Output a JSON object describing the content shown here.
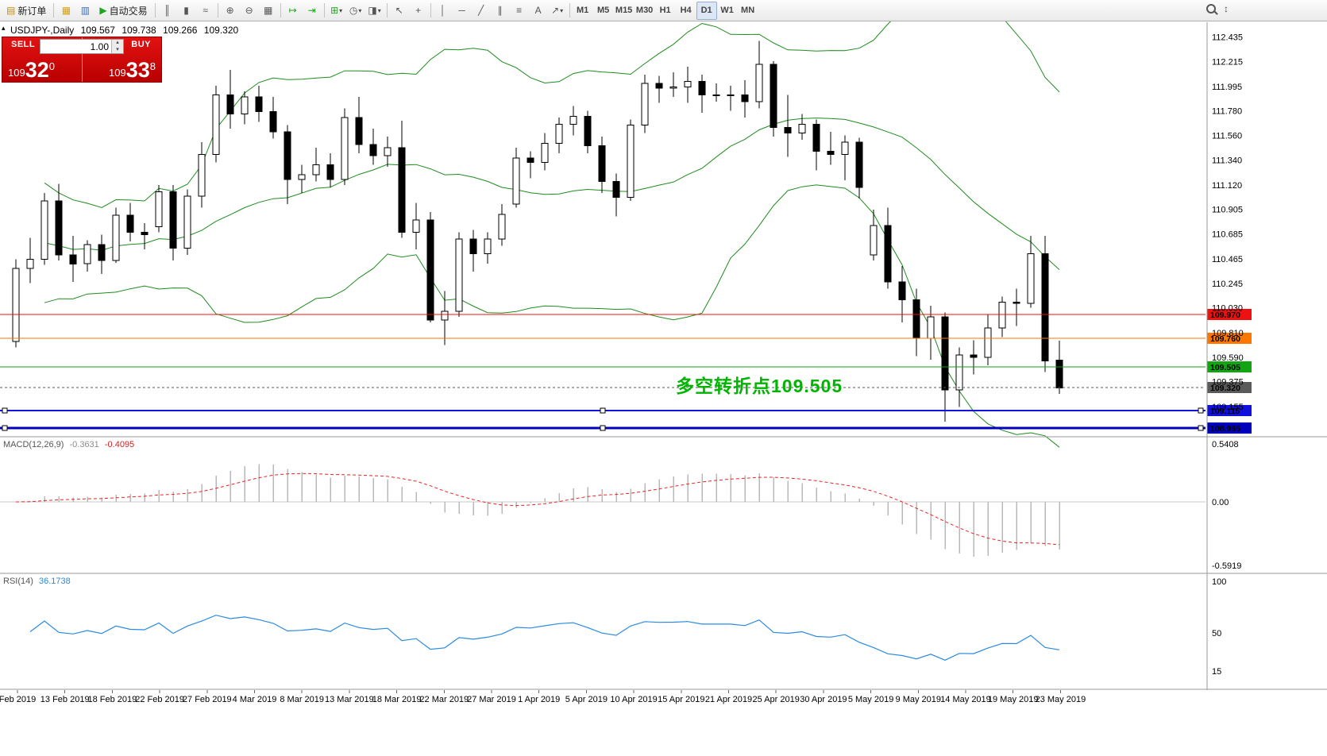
{
  "toolbar": {
    "groups": [
      [
        {
          "name": "new-order",
          "glyph": "▤",
          "glyph_color": "#c78f00",
          "label": "新订单"
        }
      ],
      [
        {
          "name": "charts-window",
          "glyph": "▦",
          "glyph_color": "#d4a017"
        },
        {
          "name": "market-watch",
          "glyph": "▥",
          "glyph_color": "#3b6fb5"
        },
        {
          "name": "auto-trading",
          "glyph": "▶",
          "glyph_color": "#1fa51f",
          "label": "自动交易"
        }
      ],
      [
        {
          "name": "bar-chart-type",
          "glyph": "║"
        },
        {
          "name": "candlestick-chart-type",
          "glyph": "▮"
        },
        {
          "name": "line-chart-type",
          "glyph": "≈"
        }
      ],
      [
        {
          "name": "zoom-in",
          "glyph": "⊕"
        },
        {
          "name": "zoom-out",
          "glyph": "⊖"
        },
        {
          "name": "tile-windows",
          "glyph": "▦"
        }
      ],
      [
        {
          "name": "auto-scroll",
          "glyph": "↦",
          "glyph_color": "#1fa51f"
        },
        {
          "name": "chart-shift",
          "glyph": "⇥",
          "glyph_color": "#1fa51f"
        }
      ],
      [
        {
          "name": "indicators-list",
          "glyph": "⊞",
          "glyph_color": "#1fa51f",
          "caret": true
        },
        {
          "name": "periods-menu",
          "glyph": "◷",
          "caret": true
        },
        {
          "name": "templates-menu",
          "glyph": "◨",
          "caret": true
        }
      ],
      [
        {
          "name": "cursor-tool",
          "glyph": "↖"
        },
        {
          "name": "crosshair-tool",
          "glyph": "+"
        }
      ],
      [
        {
          "name": "vertical-line-tool",
          "glyph": "│"
        },
        {
          "name": "horizontal-line-tool",
          "glyph": "─"
        },
        {
          "name": "trendline-tool",
          "glyph": "╱"
        },
        {
          "name": "equidistant-channel-tool",
          "glyph": "∥"
        },
        {
          "name": "fibonacci-tool",
          "glyph": "≡"
        },
        {
          "name": "text-tool",
          "glyph": "A"
        },
        {
          "name": "arrow-objects-tool",
          "glyph": "↗",
          "caret": true
        }
      ],
      [
        {
          "name": "tf-m1",
          "tf": true,
          "label": "M1"
        },
        {
          "name": "tf-m5",
          "tf": true,
          "label": "M5"
        },
        {
          "name": "tf-m15",
          "tf": true,
          "label": "M15"
        },
        {
          "name": "tf-m30",
          "tf": true,
          "label": "M30"
        },
        {
          "name": "tf-h1",
          "tf": true,
          "label": "H1"
        },
        {
          "name": "tf-h4",
          "tf": true,
          "label": "H4"
        },
        {
          "name": "tf-d1",
          "tf": true,
          "label": "D1",
          "active": true
        },
        {
          "name": "tf-w1",
          "tf": true,
          "label": "W1"
        },
        {
          "name": "tf-mn",
          "tf": true,
          "label": "MN"
        }
      ]
    ]
  },
  "chart_info": {
    "symbol_period": "USDJPY-,Daily",
    "open": "109.567",
    "high": "109.738",
    "low": "109.266",
    "close": "109.320"
  },
  "trade_panel": {
    "sell_label": "SELL",
    "buy_label": "BUY",
    "volume": "1.00",
    "sell_price_small": "109",
    "sell_price_big": "32",
    "sell_price_sup": "0",
    "buy_price_small": "109",
    "buy_price_big": "33",
    "buy_price_sup": "8"
  },
  "annotation": {
    "text": "多空转折点109.505",
    "color": "#00b400"
  },
  "indicator_labels": {
    "macd_name": "MACD(12,26,9)",
    "macd_main": "-0.3631",
    "macd_signal": "-0.4095",
    "rsi_name": "RSI(14)",
    "rsi_value": "36.1738"
  },
  "chart_data": {
    "type": "candlestick",
    "symbol": "USDJPY-",
    "timeframe": "Daily",
    "y_axis_ticks": [
      112.435,
      112.215,
      111.995,
      111.78,
      111.56,
      111.34,
      111.12,
      110.905,
      110.685,
      110.465,
      110.245,
      110.03,
      109.81,
      109.59,
      109.375,
      109.155
    ],
    "macd_axis": [
      "0.5408",
      "0.00",
      "-0.5919"
    ],
    "rsi_axis": [
      "100",
      "50",
      "15"
    ],
    "x_axis_labels": [
      "Feb 2019",
      "13 Feb 2019",
      "18 Feb 2019",
      "22 Feb 2019",
      "27 Feb 2019",
      "4 Mar 2019",
      "8 Mar 2019",
      "13 Mar 2019",
      "18 Mar 2019",
      "22 Mar 2019",
      "27 Mar 2019",
      "1 Apr 2019",
      "5 Apr 2019",
      "10 Apr 2019",
      "15 Apr 2019",
      "21 Apr 2019",
      "25 Apr 2019",
      "30 Apr 2019",
      "5 May 2019",
      "9 May 2019",
      "14 May 2019",
      "19 May 2019",
      "23 May 2019"
    ],
    "levels": [
      {
        "price": "109.970",
        "value": 109.97,
        "color": "#ee1111",
        "width": 1
      },
      {
        "price": "109.760",
        "value": 109.76,
        "color": "#ff7700",
        "width": 1
      },
      {
        "price": "109.505",
        "value": 109.505,
        "color": "#11a611",
        "width": 1
      },
      {
        "price": "109.320",
        "value": 109.32,
        "color": "#5a5a5a",
        "width": 1,
        "dash": true,
        "current": true
      },
      {
        "price": "109.115",
        "value": 109.115,
        "color": "#1111dd",
        "width": 2,
        "handles": true
      },
      {
        "price": "108.965",
        "value": 108.965,
        "color": "#0000bb",
        "width": 3,
        "handles": true
      }
    ],
    "bollinger": {
      "period": 20,
      "deviation": 2,
      "color": "#1e8c1e"
    },
    "macd": {
      "fast": 12,
      "slow": 26,
      "signal": 9,
      "histogram_color": "#b8b8b8",
      "signal_color": "#ee2222"
    },
    "rsi": {
      "period": 14,
      "color": "#2a8ae2"
    },
    "candles": [
      [
        "11 Feb 2019",
        109.73,
        110.46,
        109.68,
        110.38
      ],
      [
        "12 Feb 2019",
        110.38,
        110.65,
        110.25,
        110.46
      ],
      [
        "13 Feb 2019",
        110.46,
        111.05,
        110.41,
        110.98
      ],
      [
        "14 Feb 2019",
        110.98,
        111.13,
        110.45,
        110.5
      ],
      [
        "15 Feb 2019",
        110.5,
        110.67,
        110.26,
        110.42
      ],
      [
        "18 Feb 2019",
        110.42,
        110.63,
        110.35,
        110.59
      ],
      [
        "19 Feb 2019",
        110.59,
        110.68,
        110.33,
        110.45
      ],
      [
        "20 Feb 2019",
        110.45,
        110.92,
        110.43,
        110.85
      ],
      [
        "21 Feb 2019",
        110.85,
        110.96,
        110.62,
        110.7
      ],
      [
        "22 Feb 2019",
        110.7,
        110.78,
        110.55,
        110.68
      ],
      [
        "25 Feb 2019",
        110.75,
        111.12,
        110.7,
        111.06
      ],
      [
        "26 Feb 2019",
        111.06,
        111.12,
        110.45,
        110.56
      ],
      [
        "27 Feb 2019",
        110.56,
        111.08,
        110.5,
        111.02
      ],
      [
        "28 Feb 2019",
        111.02,
        111.5,
        110.92,
        111.39
      ],
      [
        "1 Mar 2019",
        111.39,
        112.0,
        111.32,
        111.92
      ],
      [
        "4 Mar 2019",
        111.92,
        112.14,
        111.62,
        111.75
      ],
      [
        "5 Mar 2019",
        111.75,
        111.95,
        111.66,
        111.9
      ],
      [
        "6 Mar 2019",
        111.9,
        112.0,
        111.68,
        111.77
      ],
      [
        "7 Mar 2019",
        111.77,
        111.9,
        111.53,
        111.59
      ],
      [
        "8 Mar 2019",
        111.59,
        111.65,
        110.95,
        111.17
      ],
      [
        "11 Mar 2019",
        111.17,
        111.3,
        111.05,
        111.21
      ],
      [
        "12 Mar 2019",
        111.21,
        111.45,
        111.15,
        111.3
      ],
      [
        "13 Mar 2019",
        111.3,
        111.4,
        111.1,
        111.17
      ],
      [
        "14 Mar 2019",
        111.17,
        111.8,
        111.12,
        111.72
      ],
      [
        "15 Mar 2019",
        111.72,
        111.9,
        111.4,
        111.48
      ],
      [
        "18 Mar 2019",
        111.48,
        111.62,
        111.3,
        111.38
      ],
      [
        "19 Mar 2019",
        111.38,
        111.55,
        111.28,
        111.45
      ],
      [
        "20 Mar 2019",
        111.45,
        111.69,
        110.65,
        110.7
      ],
      [
        "21 Mar 2019",
        110.7,
        110.96,
        110.55,
        110.81
      ],
      [
        "22 Mar 2019",
        110.81,
        110.88,
        109.9,
        109.92
      ],
      [
        "25 Mar 2019",
        109.92,
        110.18,
        109.7,
        110.0
      ],
      [
        "26 Mar 2019",
        110.0,
        110.7,
        109.95,
        110.64
      ],
      [
        "27 Mar 2019",
        110.64,
        110.72,
        110.35,
        110.51
      ],
      [
        "28 Mar 2019",
        110.51,
        110.7,
        110.42,
        110.64
      ],
      [
        "29 Mar 2019",
        110.64,
        110.95,
        110.58,
        110.86
      ],
      [
        "1 Apr 2019",
        110.95,
        111.45,
        110.92,
        111.36
      ],
      [
        "2 Apr 2019",
        111.36,
        111.42,
        111.18,
        111.32
      ],
      [
        "3 Apr 2019",
        111.32,
        111.58,
        111.25,
        111.49
      ],
      [
        "4 Apr 2019",
        111.49,
        111.72,
        111.4,
        111.66
      ],
      [
        "5 Apr 2019",
        111.66,
        111.82,
        111.56,
        111.73
      ],
      [
        "8 Apr 2019",
        111.73,
        111.78,
        111.4,
        111.47
      ],
      [
        "9 Apr 2019",
        111.47,
        111.55,
        111.05,
        111.15
      ],
      [
        "10 Apr 2019",
        111.15,
        111.22,
        110.84,
        111.01
      ],
      [
        "11 Apr 2019",
        111.01,
        111.7,
        110.98,
        111.65
      ],
      [
        "12 Apr 2019",
        111.65,
        112.1,
        111.58,
        112.02
      ],
      [
        "15 Apr 2019",
        112.02,
        112.09,
        111.85,
        111.98
      ],
      [
        "16 Apr 2019",
        111.98,
        112.12,
        111.9,
        111.99
      ],
      [
        "17 Apr 2019",
        111.99,
        112.17,
        111.85,
        112.04
      ],
      [
        "18 Apr 2019",
        112.04,
        112.1,
        111.76,
        111.92
      ],
      [
        "19 Apr 2019",
        111.92,
        112.02,
        111.86,
        111.92
      ],
      [
        "22 Apr 2019",
        111.92,
        112.0,
        111.78,
        111.92
      ],
      [
        "23 Apr 2019",
        111.92,
        112.05,
        111.72,
        111.86
      ],
      [
        "24 Apr 2019",
        111.86,
        112.4,
        111.8,
        112.19
      ],
      [
        "25 Apr 2019",
        112.19,
        112.22,
        111.55,
        111.63
      ],
      [
        "26 Apr 2019",
        111.63,
        111.92,
        111.37,
        111.58
      ],
      [
        "29 Apr 2019",
        111.58,
        111.75,
        111.52,
        111.66
      ],
      [
        "30 Apr 2019",
        111.66,
        111.7,
        111.25,
        111.42
      ],
      [
        "1 May 2019",
        111.42,
        111.59,
        111.3,
        111.39
      ],
      [
        "2 May 2019",
        111.39,
        111.56,
        111.16,
        111.5
      ],
      [
        "3 May 2019",
        111.5,
        111.54,
        111.0,
        111.1
      ],
      [
        "6 May 2019",
        110.5,
        110.9,
        110.45,
        110.76
      ],
      [
        "7 May 2019",
        110.76,
        110.92,
        110.2,
        110.26
      ],
      [
        "8 May 2019",
        110.26,
        110.4,
        109.9,
        110.1
      ],
      [
        "9 May 2019",
        110.1,
        110.2,
        109.6,
        109.76
      ],
      [
        "10 May 2019",
        109.76,
        110.05,
        109.57,
        109.95
      ],
      [
        "13 May 2019",
        109.95,
        109.99,
        109.02,
        109.3
      ],
      [
        "14 May 2019",
        109.3,
        109.68,
        109.15,
        109.61
      ],
      [
        "15 May 2019",
        109.61,
        109.74,
        109.44,
        109.59
      ],
      [
        "16 May 2019",
        109.59,
        109.97,
        109.52,
        109.85
      ],
      [
        "17 May 2019",
        109.85,
        110.13,
        109.77,
        110.08
      ],
      [
        "20 May 2019",
        110.08,
        110.2,
        109.87,
        110.07
      ],
      [
        "21 May 2019",
        110.07,
        110.67,
        110.03,
        110.51
      ],
      [
        "22 May 2019",
        110.51,
        110.67,
        109.46,
        109.56
      ],
      [
        "23 May 2019",
        109.567,
        109.738,
        109.266,
        109.32
      ]
    ]
  }
}
